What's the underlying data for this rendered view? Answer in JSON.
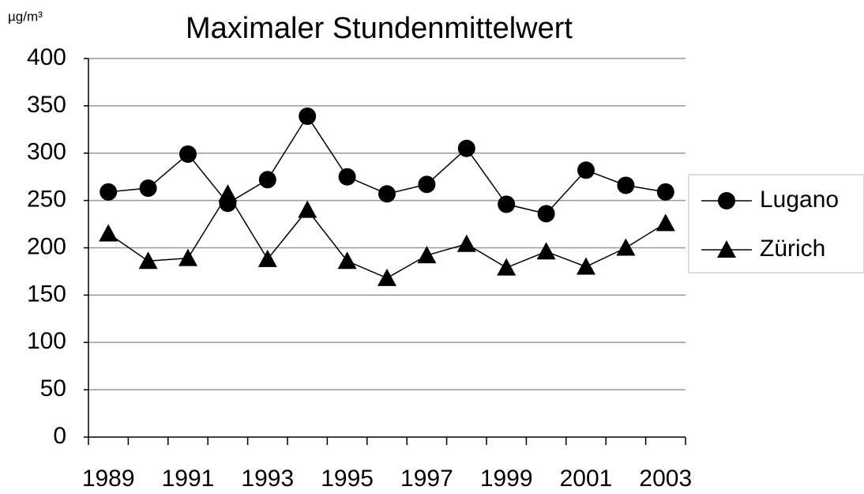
{
  "chart_data": {
    "type": "line",
    "title": "Maximaler Stundenmittelwert",
    "y_label": "µg/m³",
    "categories": [
      "1989",
      null,
      "1991",
      null,
      "1993",
      null,
      "1995",
      null,
      "1997",
      null,
      "1999",
      null,
      "2001",
      null,
      "2003"
    ],
    "series": [
      {
        "name": "Lugano",
        "color": "#000000",
        "marker": "circle",
        "values": [
          259,
          263,
          299,
          247,
          272,
          339,
          275,
          257,
          267,
          305,
          246,
          236,
          282,
          266,
          259
        ]
      },
      {
        "name": "Zürich",
        "color": "#000000",
        "marker": "triangle",
        "values": [
          215,
          186,
          189,
          257,
          188,
          240,
          186,
          168,
          192,
          204,
          179,
          196,
          180,
          200,
          226
        ]
      }
    ],
    "ylim": [
      0,
      400
    ],
    "yticks": [
      0,
      50,
      100,
      150,
      200,
      250,
      300,
      350,
      400
    ],
    "grid": true,
    "legend": "right"
  }
}
